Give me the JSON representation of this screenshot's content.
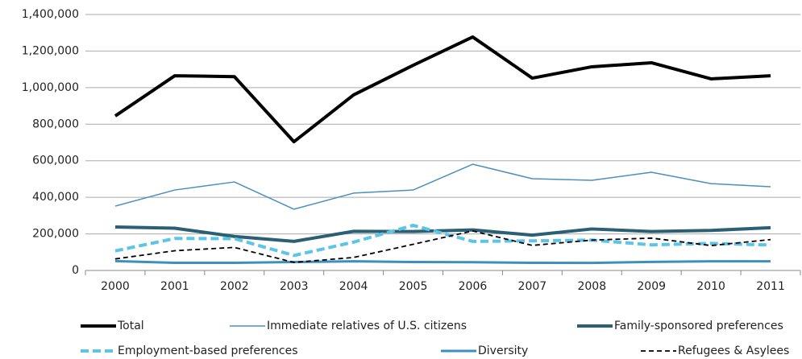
{
  "chart_data": {
    "type": "line",
    "categories": [
      "2000",
      "2001",
      "2002",
      "2003",
      "2004",
      "2005",
      "2006",
      "2007",
      "2008",
      "2009",
      "2010",
      "2011"
    ],
    "ylim": [
      0,
      1400000
    ],
    "yticks": [
      0,
      {
        "value": 200000,
        "label": "200,000"
      },
      {
        "value": 400000,
        "label": "400,000"
      },
      {
        "value": 600000,
        "label": "600,000"
      },
      {
        "value": 800000,
        "label": "800,000"
      },
      {
        "value": 1000000,
        "label": "1,000,000"
      },
      {
        "value": 1200000,
        "label": "1,200,000"
      },
      {
        "value": 1400000,
        "label": "1,400,000"
      }
    ],
    "grid": true,
    "legend": "bottom",
    "series": [
      {
        "name": "Total",
        "color": "#000000",
        "line_width": 4,
        "dashed": false,
        "values": [
          845000,
          1065000,
          1060000,
          704000,
          960000,
          1122000,
          1277000,
          1052000,
          1114000,
          1136000,
          1048000,
          1065000
        ]
      },
      {
        "name": "Immediate relatives of U.S. citizens",
        "color": "#4a8fbf",
        "line_width": 1.5,
        "dashed": false,
        "values": [
          352000,
          440000,
          484000,
          335000,
          423000,
          440000,
          581000,
          502000,
          493000,
          537000,
          475000,
          458000
        ]
      },
      {
        "name": "Family-sponsored preferences",
        "color": "#2b5f73",
        "line_width": 4,
        "dashed": false,
        "values": [
          238000,
          231000,
          186000,
          159000,
          214000,
          213000,
          222000,
          193000,
          227000,
          213000,
          219000,
          234000
        ]
      },
      {
        "name": "Employment-based preferences",
        "color": "#5bc4e8",
        "line_width": 4,
        "dashed": true,
        "values": [
          107000,
          175000,
          174000,
          82000,
          155000,
          247000,
          159000,
          162000,
          166000,
          140000,
          148000,
          139000
        ]
      },
      {
        "name": "Diversity",
        "color": "#3e8ebf",
        "line_width": 3,
        "dashed": false,
        "values": [
          51000,
          42000,
          42000,
          46000,
          50000,
          46000,
          45000,
          42000,
          41000,
          47000,
          50000,
          50000
        ]
      },
      {
        "name": "Refugees & Asylees",
        "color": "#000000",
        "line_width": 1.8,
        "dashed": true,
        "values": [
          63000,
          108000,
          126000,
          44000,
          71000,
          143000,
          216000,
          137000,
          166000,
          177000,
          136000,
          169000
        ]
      }
    ]
  }
}
